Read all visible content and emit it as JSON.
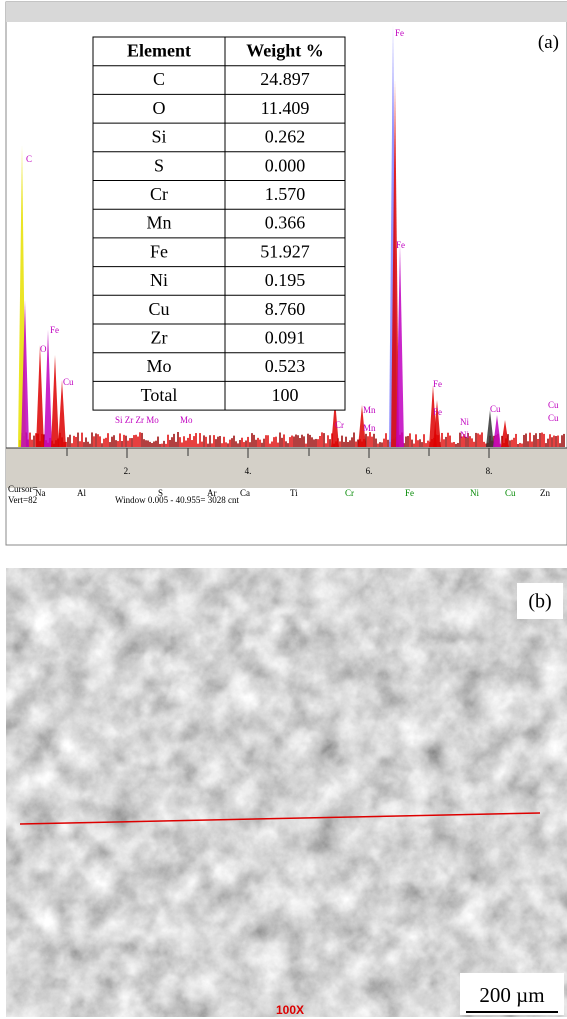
{
  "panel_a": {
    "label": "(a)",
    "table": {
      "headers": [
        "Element",
        "Weight %"
      ],
      "rows": [
        [
          "C",
          "24.897"
        ],
        [
          "O",
          "11.409"
        ],
        [
          "Si",
          "0.262"
        ],
        [
          "S",
          "0.000"
        ],
        [
          "Cr",
          "1.570"
        ],
        [
          "Mn",
          "0.366"
        ],
        [
          "Fe",
          "51.927"
        ],
        [
          "Ni",
          "0.195"
        ],
        [
          "Cu",
          "8.760"
        ],
        [
          "Zr",
          "0.091"
        ],
        [
          "Mo",
          "0.523"
        ],
        [
          "Total",
          "100"
        ]
      ]
    },
    "spectrum": {
      "axis_labels": [
        "2.",
        "4.",
        "6.",
        "8."
      ],
      "peak_labels": [
        "C",
        "O",
        "Fe",
        "Cu",
        "Fe",
        "Fe",
        "Cr",
        "Cr",
        "Mn",
        "Mn",
        "Fe",
        "Fe",
        "Ni",
        "Ni",
        "Cu",
        "Cu",
        "Cu",
        "Zr Zr Mo",
        "Si Zr Zr Mo",
        "Mo",
        "Mo"
      ],
      "element_markers": [
        "Na",
        "Al",
        "S",
        "Ar",
        "Ca",
        "Ti",
        "Cr",
        "Fe",
        "Ni",
        "Cu",
        "Zn"
      ],
      "cursor": "Cursor=",
      "vert": "Vert=82",
      "window": "Window 0.005 - 40.955=   3028 cnt"
    }
  },
  "panel_b": {
    "label": "(b)",
    "scale_bar": "200 µm",
    "magnification": "100X"
  }
}
